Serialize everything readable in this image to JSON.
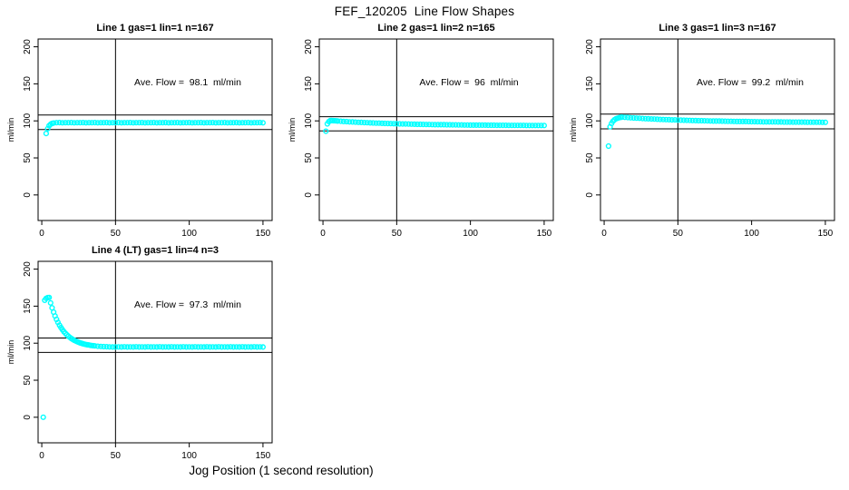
{
  "figure": {
    "title": "FEF_120205  Line Flow Shapes",
    "xlabel": "Jog Position (1 second resolution)",
    "point_color": "#00ffff",
    "axis_color": "#000000",
    "background": "#ffffff"
  },
  "chart_data": [
    {
      "type": "scatter",
      "grid_pos": {
        "row": 0,
        "col": 0
      },
      "title": "Line 1 gas=1 lin=1 n=167",
      "annotation": "Ave. Flow =  98.1  ml/min",
      "ave_flow_ml_min": 98.1,
      "ylabel": "ml/min",
      "xticks": [
        0,
        50,
        100,
        150
      ],
      "yticks": [
        0,
        50,
        100,
        150,
        200
      ],
      "xlim": [
        -2.5,
        156.2
      ],
      "ylim": [
        -34.5,
        210.5
      ],
      "vline_x": 50,
      "hlines": [
        107.9,
        88.3
      ],
      "points": [
        [
          3,
          83
        ],
        [
          4,
          89.5
        ],
        [
          5,
          93.5
        ],
        [
          6,
          95.5
        ],
        [
          7,
          96.6
        ],
        [
          8,
          97.1
        ],
        [
          10,
          97.5
        ],
        [
          12,
          97.7
        ],
        [
          14,
          97.4
        ],
        [
          16,
          97.6
        ],
        [
          18,
          97.5
        ],
        [
          20,
          97.7
        ],
        [
          22,
          97.4
        ],
        [
          24,
          97.6
        ],
        [
          26,
          97.5
        ],
        [
          28,
          97.7
        ],
        [
          30,
          97.4
        ],
        [
          32,
          97.6
        ],
        [
          34,
          97.5
        ],
        [
          36,
          97.7
        ],
        [
          38,
          97.4
        ],
        [
          40,
          97.6
        ],
        [
          42,
          97.5
        ],
        [
          44,
          97.7
        ],
        [
          46,
          97.4
        ],
        [
          48,
          97.6
        ],
        [
          50,
          97.5
        ],
        [
          52,
          97.7
        ],
        [
          54,
          97.4
        ],
        [
          56,
          97.6
        ],
        [
          58,
          97.5
        ],
        [
          60,
          97.7
        ],
        [
          62,
          97.4
        ],
        [
          64,
          97.6
        ],
        [
          66,
          97.5
        ],
        [
          68,
          97.7
        ],
        [
          70,
          97.4
        ],
        [
          72,
          97.6
        ],
        [
          74,
          97.5
        ],
        [
          76,
          97.7
        ],
        [
          78,
          97.4
        ],
        [
          80,
          97.6
        ],
        [
          82,
          97.5
        ],
        [
          84,
          97.7
        ],
        [
          86,
          97.4
        ],
        [
          88,
          97.6
        ],
        [
          90,
          97.5
        ],
        [
          92,
          97.7
        ],
        [
          94,
          97.4
        ],
        [
          96,
          97.6
        ],
        [
          98,
          97.5
        ],
        [
          100,
          97.7
        ],
        [
          102,
          97.4
        ],
        [
          104,
          97.6
        ],
        [
          106,
          97.5
        ],
        [
          108,
          97.7
        ],
        [
          110,
          97.4
        ],
        [
          112,
          97.6
        ],
        [
          114,
          97.5
        ],
        [
          116,
          97.7
        ],
        [
          118,
          97.4
        ],
        [
          120,
          97.6
        ],
        [
          122,
          97.5
        ],
        [
          124,
          97.7
        ],
        [
          126,
          97.4
        ],
        [
          128,
          97.6
        ],
        [
          130,
          97.5
        ],
        [
          132,
          97.7
        ],
        [
          134,
          97.4
        ],
        [
          136,
          97.6
        ],
        [
          138,
          97.5
        ],
        [
          140,
          97.7
        ],
        [
          142,
          97.4
        ],
        [
          144,
          97.6
        ],
        [
          146,
          97.5
        ],
        [
          148,
          97.7
        ],
        [
          150,
          97.4
        ]
      ]
    },
    {
      "type": "scatter",
      "grid_pos": {
        "row": 0,
        "col": 1
      },
      "title": "Line 2 gas=1 lin=2 n=165",
      "annotation": "Ave. Flow =  96  ml/min",
      "ave_flow_ml_min": 96,
      "ylabel": "ml/min",
      "xticks": [
        0,
        50,
        100,
        150
      ],
      "yticks": [
        0,
        50,
        100,
        150,
        200
      ],
      "xlim": [
        -2.5,
        156.2
      ],
      "ylim": [
        -34.5,
        210.5
      ],
      "vline_x": 50,
      "hlines": [
        105.6,
        86.4
      ],
      "points": [
        [
          2,
          86
        ],
        [
          3,
          96
        ],
        [
          4,
          99
        ],
        [
          5,
          100.5
        ],
        [
          6,
          100.4
        ],
        [
          7,
          100.3
        ],
        [
          8,
          100.1
        ],
        [
          9,
          100
        ],
        [
          10,
          99.8
        ],
        [
          12,
          99.5
        ],
        [
          14,
          99.2
        ],
        [
          16,
          99
        ],
        [
          18,
          98.7
        ],
        [
          20,
          98.5
        ],
        [
          22,
          98.3
        ],
        [
          24,
          98.1
        ],
        [
          26,
          97.9
        ],
        [
          28,
          97.7
        ],
        [
          30,
          97.5
        ],
        [
          32,
          97.3
        ],
        [
          34,
          97.2
        ],
        [
          36,
          97
        ],
        [
          38,
          96.9
        ],
        [
          40,
          96.7
        ],
        [
          42,
          96.6
        ],
        [
          44,
          96.5
        ],
        [
          46,
          96.3
        ],
        [
          48,
          96.2
        ],
        [
          50,
          96.1
        ],
        [
          52,
          96
        ],
        [
          54,
          95.9
        ],
        [
          56,
          95.8
        ],
        [
          58,
          95.7
        ],
        [
          60,
          95.6
        ],
        [
          62,
          95.5
        ],
        [
          64,
          95.4
        ],
        [
          66,
          95.3
        ],
        [
          68,
          95.2
        ],
        [
          70,
          95.1
        ],
        [
          72,
          95.1
        ],
        [
          74,
          95
        ],
        [
          76,
          94.9
        ],
        [
          78,
          94.9
        ],
        [
          80,
          94.8
        ],
        [
          82,
          94.8
        ],
        [
          84,
          94.7
        ],
        [
          86,
          94.7
        ],
        [
          88,
          94.6
        ],
        [
          90,
          94.6
        ],
        [
          92,
          94.5
        ],
        [
          94,
          94.5
        ],
        [
          96,
          94.4
        ],
        [
          98,
          94.4
        ],
        [
          100,
          94.3
        ],
        [
          102,
          94.3
        ],
        [
          104,
          94.3
        ],
        [
          106,
          94.2
        ],
        [
          108,
          94.2
        ],
        [
          110,
          94.2
        ],
        [
          112,
          94.1
        ],
        [
          114,
          94.1
        ],
        [
          116,
          94.1
        ],
        [
          118,
          94
        ],
        [
          120,
          94
        ],
        [
          122,
          94
        ],
        [
          124,
          94
        ],
        [
          126,
          93.9
        ],
        [
          128,
          93.9
        ],
        [
          130,
          93.9
        ],
        [
          132,
          93.9
        ],
        [
          134,
          93.9
        ],
        [
          136,
          93.9
        ],
        [
          138,
          93.8
        ],
        [
          140,
          93.8
        ],
        [
          142,
          93.8
        ],
        [
          144,
          93.8
        ],
        [
          146,
          93.8
        ],
        [
          148,
          93.8
        ],
        [
          150,
          93.8
        ]
      ]
    },
    {
      "type": "scatter",
      "grid_pos": {
        "row": 0,
        "col": 2
      },
      "title": "Line 3 gas=1 lin=3 n=167",
      "annotation": "Ave. Flow =  99.2  ml/min",
      "ave_flow_ml_min": 99.2,
      "ylabel": "ml/min",
      "xticks": [
        0,
        50,
        100,
        150
      ],
      "yticks": [
        0,
        50,
        100,
        150,
        200
      ],
      "xlim": [
        -2.5,
        156.2
      ],
      "ylim": [
        -34.5,
        210.5
      ],
      "vline_x": 50,
      "hlines": [
        109.1,
        89.3
      ],
      "points": [
        [
          3,
          66
        ],
        [
          4,
          92
        ],
        [
          5,
          96.5
        ],
        [
          6,
          99.5
        ],
        [
          7,
          101.5
        ],
        [
          8,
          102.8
        ],
        [
          9,
          103.6
        ],
        [
          10,
          104.2
        ],
        [
          11,
          104.7
        ],
        [
          12,
          105
        ],
        [
          14,
          104.8
        ],
        [
          16,
          104.5
        ],
        [
          18,
          104.2
        ],
        [
          20,
          103.9
        ],
        [
          22,
          103.7
        ],
        [
          24,
          103.5
        ],
        [
          26,
          103.2
        ],
        [
          28,
          103
        ],
        [
          30,
          102.8
        ],
        [
          32,
          102.6
        ],
        [
          34,
          102.4
        ],
        [
          36,
          102.2
        ],
        [
          38,
          102
        ],
        [
          40,
          101.9
        ],
        [
          42,
          101.7
        ],
        [
          44,
          101.6
        ],
        [
          46,
          101.4
        ],
        [
          48,
          101.3
        ],
        [
          50,
          101.1
        ],
        [
          52,
          101
        ],
        [
          54,
          100.9
        ],
        [
          56,
          100.7
        ],
        [
          58,
          100.6
        ],
        [
          60,
          100.5
        ],
        [
          62,
          100.4
        ],
        [
          64,
          100.3
        ],
        [
          66,
          100.2
        ],
        [
          68,
          100.1
        ],
        [
          70,
          100
        ],
        [
          72,
          99.9
        ],
        [
          74,
          99.8
        ],
        [
          76,
          99.7
        ],
        [
          78,
          99.7
        ],
        [
          80,
          99.6
        ],
        [
          82,
          99.5
        ],
        [
          84,
          99.4
        ],
        [
          86,
          99.4
        ],
        [
          88,
          99.3
        ],
        [
          90,
          99.2
        ],
        [
          92,
          99.2
        ],
        [
          94,
          99.1
        ],
        [
          96,
          99.1
        ],
        [
          98,
          99
        ],
        [
          100,
          98.9
        ],
        [
          102,
          98.9
        ],
        [
          104,
          98.8
        ],
        [
          106,
          98.8
        ],
        [
          108,
          98.7
        ],
        [
          110,
          98.7
        ],
        [
          112,
          98.6
        ],
        [
          114,
          98.6
        ],
        [
          116,
          98.6
        ],
        [
          118,
          98.5
        ],
        [
          120,
          98.5
        ],
        [
          122,
          98.4
        ],
        [
          124,
          98.4
        ],
        [
          126,
          98.4
        ],
        [
          128,
          98.3
        ],
        [
          130,
          98.3
        ],
        [
          132,
          98.3
        ],
        [
          134,
          98.3
        ],
        [
          136,
          98.3
        ],
        [
          138,
          98.2
        ],
        [
          140,
          98.2
        ],
        [
          142,
          98.2
        ],
        [
          144,
          98.2
        ],
        [
          146,
          98.2
        ],
        [
          148,
          98.1
        ],
        [
          150,
          98.1
        ]
      ]
    },
    {
      "type": "scatter",
      "grid_pos": {
        "row": 1,
        "col": 0
      },
      "title": "Line 4 (LT) gas=1 lin=4 n=3",
      "annotation": "Ave. Flow =  97.3  ml/min",
      "ave_flow_ml_min": 97.3,
      "ylabel": "ml/min",
      "xticks": [
        0,
        50,
        100,
        150
      ],
      "yticks": [
        0,
        50,
        100,
        150,
        200
      ],
      "xlim": [
        -2.5,
        156.2
      ],
      "ylim": [
        -34.5,
        210.5
      ],
      "vline_x": 50,
      "hlines": [
        107.0,
        87.6
      ],
      "points": [
        [
          1,
          0
        ],
        [
          2,
          158
        ],
        [
          3,
          160.5
        ],
        [
          4,
          161.5
        ],
        [
          5,
          161.8
        ],
        [
          6,
          154.4
        ],
        [
          7,
          147.8
        ],
        [
          8,
          141.9
        ],
        [
          9,
          136.7
        ],
        [
          10,
          132.1
        ],
        [
          11,
          128
        ],
        [
          12,
          124.3
        ],
        [
          13,
          121.1
        ],
        [
          14,
          118.2
        ],
        [
          15,
          115.6
        ],
        [
          16,
          113.3
        ],
        [
          17,
          111.3
        ],
        [
          18,
          109.5
        ],
        [
          19,
          107.8
        ],
        [
          20,
          106.4
        ],
        [
          21,
          105.1
        ],
        [
          22,
          103.9
        ],
        [
          23,
          102.9
        ],
        [
          24,
          102
        ],
        [
          25,
          101.2
        ],
        [
          26,
          100.4
        ],
        [
          27,
          99.8
        ],
        [
          28,
          99.2
        ],
        [
          29,
          98.7
        ],
        [
          30,
          98.2
        ],
        [
          31,
          97.8
        ],
        [
          32,
          97.5
        ],
        [
          33,
          97.1
        ],
        [
          34,
          96.8
        ],
        [
          35,
          96.6
        ],
        [
          36,
          96.3
        ],
        [
          38,
          95.9
        ],
        [
          40,
          95.6
        ],
        [
          42,
          95.4
        ],
        [
          44,
          95.2
        ],
        [
          46,
          95
        ],
        [
          48,
          94.9
        ],
        [
          50,
          94.9
        ],
        [
          52,
          95
        ],
        [
          54,
          94.8
        ],
        [
          56,
          95.1
        ],
        [
          58,
          94.9
        ],
        [
          60,
          95
        ],
        [
          62,
          94.8
        ],
        [
          64,
          95.1
        ],
        [
          66,
          94.9
        ],
        [
          68,
          95
        ],
        [
          70,
          94.8
        ],
        [
          72,
          95.1
        ],
        [
          74,
          94.9
        ],
        [
          76,
          95
        ],
        [
          78,
          94.8
        ],
        [
          80,
          95.1
        ],
        [
          82,
          94.9
        ],
        [
          84,
          95
        ],
        [
          86,
          94.8
        ],
        [
          88,
          95.1
        ],
        [
          90,
          94.9
        ],
        [
          92,
          95
        ],
        [
          94,
          94.8
        ],
        [
          96,
          95.1
        ],
        [
          98,
          94.9
        ],
        [
          100,
          95
        ],
        [
          102,
          94.8
        ],
        [
          104,
          95.1
        ],
        [
          106,
          94.9
        ],
        [
          108,
          95
        ],
        [
          110,
          94.8
        ],
        [
          112,
          95.1
        ],
        [
          114,
          94.9
        ],
        [
          116,
          95
        ],
        [
          118,
          94.8
        ],
        [
          120,
          95.1
        ],
        [
          122,
          94.9
        ],
        [
          124,
          95
        ],
        [
          126,
          94.8
        ],
        [
          128,
          95.1
        ],
        [
          130,
          94.9
        ],
        [
          132,
          95
        ],
        [
          134,
          94.8
        ],
        [
          136,
          95.1
        ],
        [
          138,
          94.9
        ],
        [
          140,
          95
        ],
        [
          142,
          94.8
        ],
        [
          144,
          95.1
        ],
        [
          146,
          94.9
        ],
        [
          148,
          95
        ],
        [
          150,
          94.8
        ]
      ]
    }
  ]
}
